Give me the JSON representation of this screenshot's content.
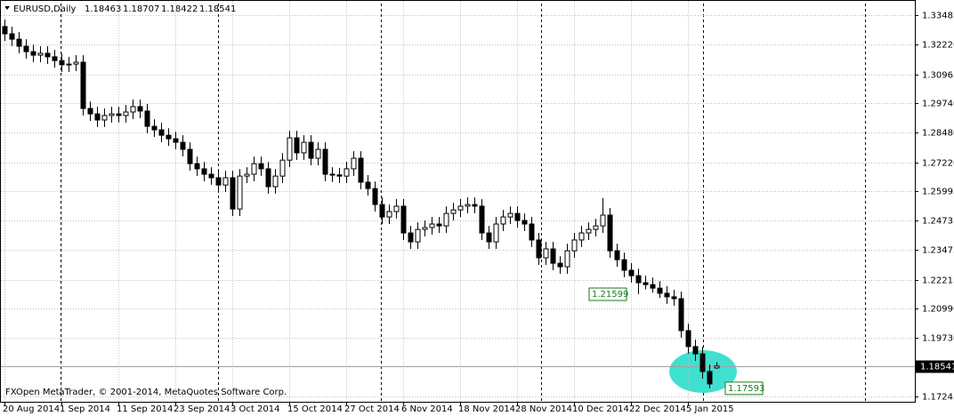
{
  "chart_data": {
    "type": "candlestick",
    "symbol": "EURUSD,Daily",
    "copyright": "FXOpen MetaTrader, © 2001-2014, MetaQuotes Software Corp.",
    "categories": [
      "20 Aug 2014",
      null,
      null,
      null,
      null,
      null,
      null,
      null,
      "1 Sep 2014",
      null,
      null,
      null,
      null,
      null,
      null,
      null,
      "11 Sep 2014",
      null,
      null,
      null,
      null,
      null,
      null,
      null,
      "23 Sep 2014",
      null,
      null,
      null,
      null,
      null,
      null,
      null,
      "3 Oct 2014",
      null,
      null,
      null,
      null,
      null,
      null,
      null,
      "15 Oct 2014",
      null,
      null,
      null,
      null,
      null,
      null,
      null,
      "27 Oct 2014",
      null,
      null,
      null,
      null,
      null,
      null,
      null,
      "6 Nov 2014",
      null,
      null,
      null,
      null,
      null,
      null,
      null,
      "18 Nov 2014",
      null,
      null,
      null,
      null,
      null,
      null,
      null,
      "28 Nov 2014",
      null,
      null,
      null,
      null,
      null,
      null,
      null,
      "10 Dec 2014",
      null,
      null,
      null,
      null,
      null,
      null,
      null,
      "22 Dec 2014",
      null,
      null,
      null,
      null,
      null,
      null,
      null,
      "5 Jan 2015",
      null,
      null,
      null,
      null
    ],
    "open": [
      1.33,
      1.3269,
      1.3246,
      1.3216,
      1.3193,
      1.3178,
      1.3186,
      1.3171,
      1.3155,
      1.3137,
      1.314,
      1.3148,
      1.2951,
      1.2928,
      1.2902,
      1.2921,
      1.2928,
      1.2921,
      1.2936,
      1.2959,
      1.294,
      1.2875,
      1.286,
      1.2837,
      1.2822,
      1.2807,
      1.2777,
      1.2716,
      1.2694,
      1.2671,
      1.2656,
      1.2625,
      1.2656,
      1.2523,
      1.2663,
      1.2671,
      1.2716,
      1.2694,
      1.2618,
      1.2663,
      1.2731,
      1.2826,
      1.2762,
      1.2807,
      1.2739,
      1.2777,
      1.2671,
      1.2668,
      1.2663,
      1.2694,
      1.2739,
      1.2637,
      1.261,
      1.2542,
      1.2489,
      1.2512,
      1.2535,
      1.2421,
      1.2383,
      1.2436,
      1.2444,
      1.2459,
      1.2451,
      1.2504,
      1.2519,
      1.2535,
      1.2542,
      1.2535,
      1.2421,
      1.2383,
      1.2459,
      1.2489,
      1.2504,
      1.2474,
      1.2459,
      1.2391,
      1.2315,
      1.2353,
      1.2292,
      1.2277,
      1.2345,
      1.2391,
      1.2421,
      1.2436,
      1.2451,
      1.2497,
      1.2345,
      1.2307,
      1.2262,
      1.2239,
      1.2209,
      1.2201,
      1.2186,
      1.2164,
      1.2149,
      1.2141,
      1.2005,
      1.1937,
      1.1906,
      1.1831,
      1.18463
    ],
    "high": [
      1.333,
      1.3299,
      1.3276,
      1.3246,
      1.3223,
      1.3216,
      1.3216,
      1.3201,
      1.3185,
      1.317,
      1.3178,
      1.3178,
      1.2981,
      1.2958,
      1.2951,
      1.2958,
      1.2958,
      1.2966,
      1.2989,
      1.2989,
      1.297,
      1.2905,
      1.289,
      1.2867,
      1.2852,
      1.2837,
      1.2807,
      1.2746,
      1.2724,
      1.2701,
      1.2686,
      1.2686,
      1.2686,
      1.2693,
      1.2701,
      1.2746,
      1.2746,
      1.2724,
      1.2693,
      1.2761,
      1.2856,
      1.2856,
      1.2837,
      1.2837,
      1.2807,
      1.2807,
      1.2701,
      1.2698,
      1.2724,
      1.2769,
      1.2769,
      1.2667,
      1.264,
      1.2572,
      1.2542,
      1.2565,
      1.2565,
      1.2451,
      1.2466,
      1.2474,
      1.2489,
      1.2489,
      1.2534,
      1.2549,
      1.2565,
      1.2572,
      1.2572,
      1.2565,
      1.2451,
      1.2489,
      1.2519,
      1.2534,
      1.2534,
      1.2504,
      1.2489,
      1.2421,
      1.2383,
      1.2383,
      1.2322,
      1.2375,
      1.2421,
      1.2451,
      1.2466,
      1.2481,
      1.257,
      1.2527,
      1.2375,
      1.2337,
      1.2292,
      1.2269,
      1.2239,
      1.2231,
      1.2216,
      1.2194,
      1.2179,
      1.2171,
      1.2035,
      1.1967,
      1.1936,
      1.1861,
      1.18707
    ],
    "low": [
      1.3239,
      1.3216,
      1.3186,
      1.3163,
      1.3148,
      1.3148,
      1.3141,
      1.3125,
      1.3107,
      1.3107,
      1.311,
      1.2921,
      1.2898,
      1.2872,
      1.2872,
      1.2891,
      1.2891,
      1.2891,
      1.2906,
      1.291,
      1.2845,
      1.283,
      1.2807,
      1.2792,
      1.2777,
      1.2747,
      1.2686,
      1.2664,
      1.2641,
      1.2626,
      1.2595,
      1.2595,
      1.2493,
      1.2493,
      1.2633,
      1.2641,
      1.2664,
      1.2588,
      1.2588,
      1.2633,
      1.2701,
      1.2732,
      1.2732,
      1.2709,
      1.2709,
      1.2641,
      1.2638,
      1.2633,
      1.2633,
      1.2664,
      1.2607,
      1.258,
      1.2512,
      1.2459,
      1.2459,
      1.2482,
      1.2391,
      1.2353,
      1.2353,
      1.2406,
      1.2414,
      1.2421,
      1.2421,
      1.2474,
      1.2489,
      1.2505,
      1.2505,
      1.2391,
      1.2353,
      1.2353,
      1.2429,
      1.2459,
      1.2444,
      1.2429,
      1.2361,
      1.2285,
      1.2285,
      1.2262,
      1.2247,
      1.2247,
      1.2315,
      1.2361,
      1.2391,
      1.2406,
      1.2421,
      1.2315,
      1.2277,
      1.2232,
      1.2209,
      1.21599,
      1.2181,
      1.2166,
      1.2144,
      1.2119,
      1.2111,
      1.1975,
      1.1907,
      1.1876,
      1.1801,
      1.17593,
      1.18422
    ],
    "close": [
      1.3269,
      1.3246,
      1.3216,
      1.3193,
      1.3178,
      1.3186,
      1.3171,
      1.3155,
      1.3137,
      1.314,
      1.3148,
      1.2951,
      1.2928,
      1.2902,
      1.2921,
      1.2928,
      1.2921,
      1.2936,
      1.2959,
      1.294,
      1.2875,
      1.286,
      1.2837,
      1.2822,
      1.2807,
      1.2777,
      1.2716,
      1.2694,
      1.2671,
      1.2656,
      1.2625,
      1.2656,
      1.2523,
      1.2663,
      1.2671,
      1.2716,
      1.2694,
      1.2618,
      1.2663,
      1.2731,
      1.2826,
      1.2762,
      1.2807,
      1.2739,
      1.2777,
      1.2671,
      1.2668,
      1.2663,
      1.2694,
      1.2739,
      1.2637,
      1.261,
      1.2542,
      1.2489,
      1.2512,
      1.2535,
      1.2421,
      1.2383,
      1.2436,
      1.2444,
      1.2459,
      1.2451,
      1.2504,
      1.2519,
      1.2535,
      1.2542,
      1.2535,
      1.2421,
      1.2383,
      1.2459,
      1.2489,
      1.2504,
      1.2474,
      1.2459,
      1.2391,
      1.2315,
      1.2353,
      1.2292,
      1.2277,
      1.2345,
      1.2391,
      1.2421,
      1.2436,
      1.2451,
      1.2497,
      1.2345,
      1.2307,
      1.2262,
      1.2239,
      1.2209,
      1.2201,
      1.2186,
      1.2164,
      1.2149,
      1.2141,
      1.2005,
      1.1937,
      1.1906,
      1.1831,
      1.1778,
      1.18541
    ],
    "ylim": [
      1.1702,
      1.3394
    ],
    "yticks": [
      1.33485,
      {
        "value": 1.3222,
        "label": "1.32220"
      },
      1.30965,
      {
        "value": 1.2974,
        "label": "1.29740"
      },
      {
        "value": 1.2848,
        "label": "1.28480"
      },
      {
        "value": 1.2722,
        "label": "1.27220"
      },
      1.25995,
      1.24735,
      1.23475,
      1.22215,
      {
        "value": 1.2099,
        "label": "1.20990"
      },
      {
        "value": 1.1973,
        "label": "1.19730"
      },
      1.17245
    ],
    "grid": true,
    "bull_color": "#ffffff",
    "bear_color": "#000000",
    "annotation_color": "#1a7a1a"
  }
}
